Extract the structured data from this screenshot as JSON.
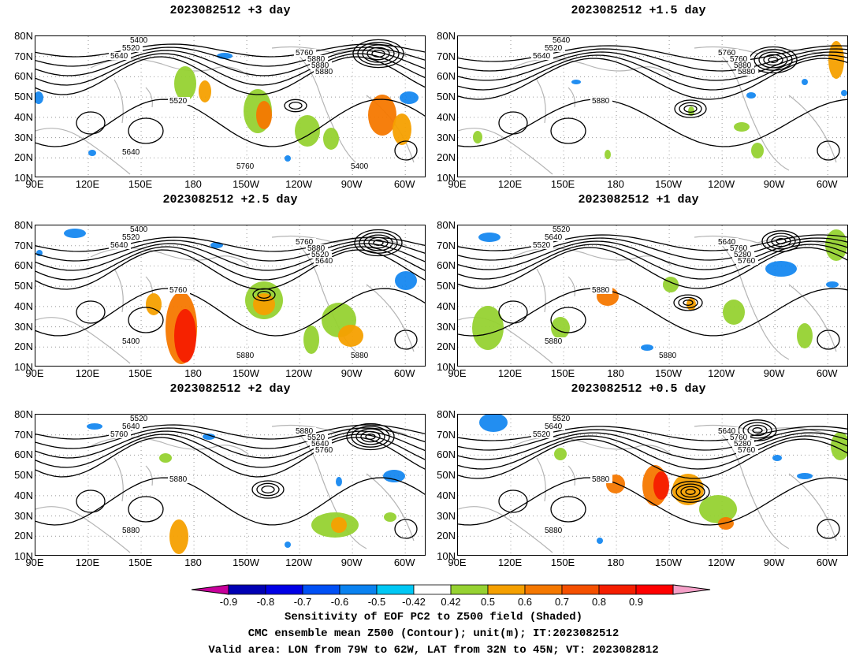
{
  "panels": [
    {
      "title": "2023082512  +3 day",
      "contour_labels": [
        "5400",
        "5520",
        "5640",
        "5760",
        "5880",
        "5880",
        "5880",
        "5520",
        "5640",
        "5760",
        "5400"
      ]
    },
    {
      "title": "2023082512  +1.5 day",
      "contour_labels": [
        "5640",
        "5520",
        "5640",
        "5760",
        "5760",
        "5880",
        "5880",
        "5880"
      ]
    },
    {
      "title": "2023082512  +2.5 day",
      "contour_labels": [
        "5400",
        "5520",
        "5640",
        "5760",
        "5880",
        "5520",
        "5640",
        "5760",
        "5400",
        "5880",
        "5880"
      ]
    },
    {
      "title": "2023082512  +1 day",
      "contour_labels": [
        "5520",
        "5640",
        "5520",
        "5640",
        "5760",
        "5280",
        "5760",
        "5880",
        "5880",
        "5880"
      ]
    },
    {
      "title": "2023082512  +2 day",
      "contour_labels": [
        "5520",
        "5640",
        "5760",
        "5880",
        "5520",
        "5640",
        "5760",
        "5880",
        "5880"
      ]
    },
    {
      "title": "2023082512  +0.5 day",
      "contour_labels": [
        "5520",
        "5640",
        "5520",
        "5640",
        "5760",
        "5280",
        "5760",
        "5880",
        "5880"
      ]
    }
  ],
  "axes": {
    "lat_labels": [
      "80N",
      "70N",
      "60N",
      "50N",
      "40N",
      "30N",
      "20N",
      "10N"
    ],
    "lon_labels": [
      "90E",
      "120E",
      "150E",
      "180",
      "150W",
      "120W",
      "90W",
      "60W"
    ]
  },
  "colorbar": {
    "ticks": [
      "-0.9",
      "-0.8",
      "-0.7",
      "-0.6",
      "-0.5",
      "-0.42",
      "0.42",
      "0.5",
      "0.6",
      "0.7",
      "0.8",
      "0.9"
    ],
    "colors": [
      "#c8009b",
      "#0000b4",
      "#0000e6",
      "#0050f5",
      "#0a82f0",
      "#00c8f5",
      "#ffffff",
      "#96d232",
      "#f5a000",
      "#f57800",
      "#f55000",
      "#f51e00",
      "#ff0000",
      "#f5a0c8"
    ]
  },
  "footer": {
    "line1": "Sensitivity of EOF PC2 to Z500 field (Shaded)",
    "line2": "CMC ensemble mean Z500 (Contour); unit(m); IT:2023082512",
    "line3": "Valid area: LON from 79W to 62W, LAT from 32N to 45N; VT: 2023082812"
  }
}
